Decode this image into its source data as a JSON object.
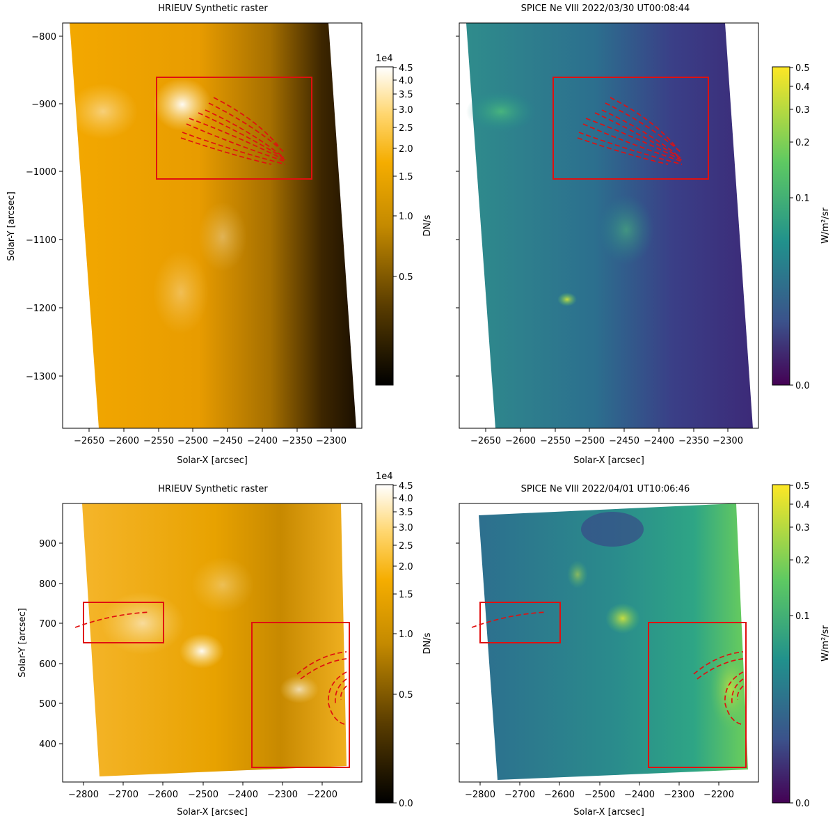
{
  "panels": [
    {
      "id": "top-left",
      "title": "HRIEUV Synthetic  raster",
      "xlabel": "Solar-X [arcsec]",
      "ylabel": "Solar-Y [arcsec]",
      "x_ticks": [
        "−2650",
        "−2600",
        "−2550",
        "−2500",
        "−2450",
        "−2400",
        "−2350",
        "−2300"
      ],
      "y_ticks": [
        "−800",
        "−900",
        "−1000",
        "−1100",
        "−1200",
        "−1300"
      ],
      "colormap": "hot-gold",
      "colorbar": {
        "label": "DN/s",
        "exponent": "1e4",
        "ticks": [
          "4.5",
          "4.0",
          "3.5",
          "3.0",
          "2.5",
          "2.0",
          "1.5",
          "1.0",
          "0.5"
        ]
      }
    },
    {
      "id": "top-right",
      "title": "SPICE Ne VIII 2022/03/30  UT00:08:44",
      "xlabel": "Solar-X [arcsec]",
      "x_ticks": [
        "−2650",
        "−2600",
        "−2550",
        "−2500",
        "−2450",
        "−2400",
        "−2350",
        "−2300"
      ],
      "colormap": "viridis",
      "colorbar": {
        "label": "W/m²/sr",
        "ticks": [
          "0.5",
          "0.4",
          "0.3",
          "0.2",
          "0.1",
          "0.0"
        ]
      }
    },
    {
      "id": "bottom-left",
      "title": "HRIEUV Synthetic  raster",
      "xlabel": "Solar-X [arcsec]",
      "ylabel": "Solar-Y [arcsec]",
      "x_ticks": [
        "−2800",
        "−2700",
        "−2600",
        "−2500",
        "−2400",
        "−2300",
        "−2200"
      ],
      "y_ticks": [
        "900",
        "800",
        "700",
        "600",
        "500",
        "400"
      ],
      "colormap": "hot-gold",
      "colorbar": {
        "label": "DN/s",
        "exponent": "1e4",
        "ticks": [
          "4.5",
          "4.0",
          "3.5",
          "3.0",
          "2.5",
          "2.0",
          "1.5",
          "1.0",
          "0.5",
          "0.0"
        ]
      }
    },
    {
      "id": "bottom-right",
      "title": "SPICE Ne VIII 2022/04/01  UT10:06:46",
      "xlabel": "Solar-X [arcsec]",
      "x_ticks": [
        "−2800",
        "−2700",
        "−2600",
        "−2500",
        "−2400",
        "−2300",
        "−2200"
      ],
      "colormap": "viridis",
      "colorbar": {
        "label": "W/m²/sr",
        "ticks": [
          "0.5",
          "0.4",
          "0.3",
          "0.2",
          "0.1",
          "0.0"
        ]
      }
    }
  ],
  "overlay_color": "#e01010"
}
